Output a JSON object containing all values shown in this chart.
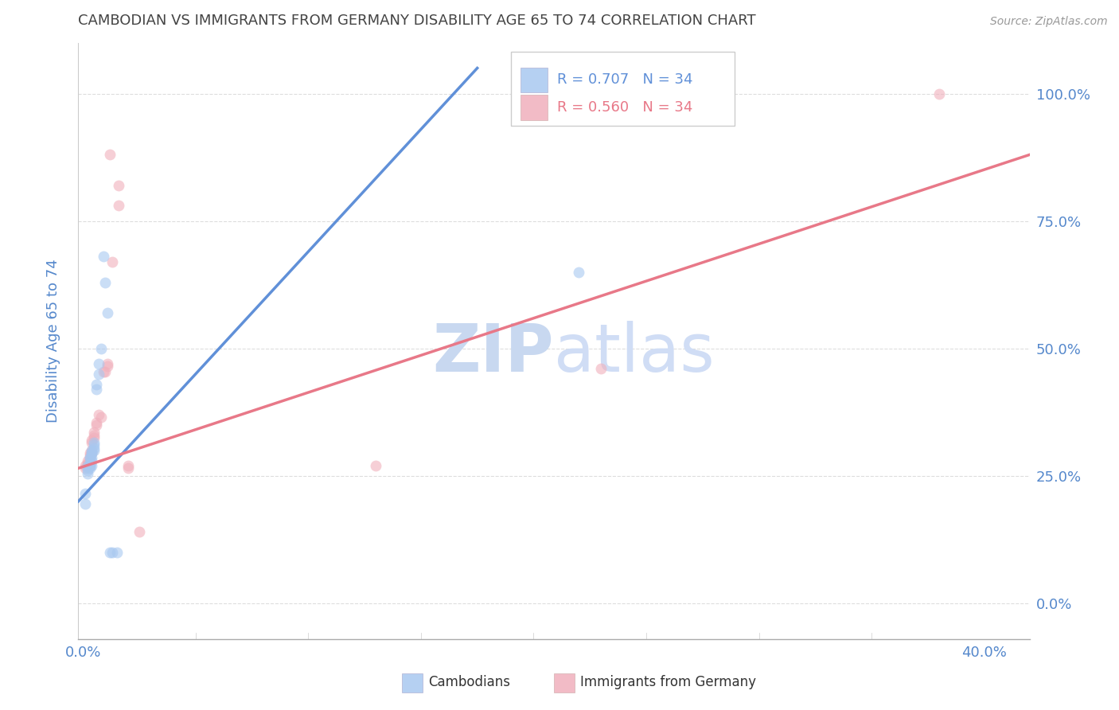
{
  "title": "CAMBODIAN VS IMMIGRANTS FROM GERMANY DISABILITY AGE 65 TO 74 CORRELATION CHART",
  "source": "Source: ZipAtlas.com",
  "xlim": [
    -0.002,
    0.42
  ],
  "ylim": [
    -0.07,
    1.1
  ],
  "ylabel": "Disability Age 65 to 74",
  "yticks": [
    0.0,
    0.25,
    0.5,
    0.75,
    1.0
  ],
  "xtick_positions": [
    0.0,
    0.4
  ],
  "blue_scatter": [
    [
      0.001,
      0.195
    ],
    [
      0.001,
      0.215
    ],
    [
      0.002,
      0.27
    ],
    [
      0.002,
      0.265
    ],
    [
      0.002,
      0.255
    ],
    [
      0.002,
      0.26
    ],
    [
      0.003,
      0.285
    ],
    [
      0.003,
      0.275
    ],
    [
      0.003,
      0.27
    ],
    [
      0.003,
      0.265
    ],
    [
      0.003,
      0.27
    ],
    [
      0.003,
      0.285
    ],
    [
      0.004,
      0.295
    ],
    [
      0.004,
      0.285
    ],
    [
      0.004,
      0.27
    ],
    [
      0.004,
      0.28
    ],
    [
      0.004,
      0.3
    ],
    [
      0.004,
      0.295
    ],
    [
      0.005,
      0.315
    ],
    [
      0.005,
      0.31
    ],
    [
      0.005,
      0.305
    ],
    [
      0.005,
      0.3
    ],
    [
      0.006,
      0.43
    ],
    [
      0.006,
      0.42
    ],
    [
      0.007,
      0.47
    ],
    [
      0.007,
      0.45
    ],
    [
      0.008,
      0.5
    ],
    [
      0.009,
      0.68
    ],
    [
      0.01,
      0.63
    ],
    [
      0.011,
      0.57
    ],
    [
      0.012,
      0.1
    ],
    [
      0.013,
      0.1
    ],
    [
      0.015,
      0.1
    ],
    [
      0.22,
      0.65
    ]
  ],
  "pink_scatter": [
    [
      0.001,
      0.27
    ],
    [
      0.001,
      0.265
    ],
    [
      0.002,
      0.28
    ],
    [
      0.002,
      0.275
    ],
    [
      0.002,
      0.27
    ],
    [
      0.003,
      0.295
    ],
    [
      0.003,
      0.29
    ],
    [
      0.003,
      0.285
    ],
    [
      0.003,
      0.28
    ],
    [
      0.004,
      0.3
    ],
    [
      0.004,
      0.295
    ],
    [
      0.004,
      0.32
    ],
    [
      0.004,
      0.315
    ],
    [
      0.005,
      0.335
    ],
    [
      0.005,
      0.33
    ],
    [
      0.005,
      0.325
    ],
    [
      0.006,
      0.355
    ],
    [
      0.006,
      0.35
    ],
    [
      0.007,
      0.37
    ],
    [
      0.008,
      0.365
    ],
    [
      0.009,
      0.455
    ],
    [
      0.01,
      0.455
    ],
    [
      0.011,
      0.47
    ],
    [
      0.011,
      0.465
    ],
    [
      0.012,
      0.88
    ],
    [
      0.013,
      0.67
    ],
    [
      0.016,
      0.82
    ],
    [
      0.016,
      0.78
    ],
    [
      0.02,
      0.27
    ],
    [
      0.02,
      0.265
    ],
    [
      0.025,
      0.14
    ],
    [
      0.13,
      0.27
    ],
    [
      0.23,
      0.46
    ],
    [
      0.38,
      1.0
    ]
  ],
  "blue_line": {
    "x0": -0.002,
    "x1": 0.175,
    "y0": 0.2,
    "y1": 1.05
  },
  "pink_line": {
    "x0": -0.002,
    "x1": 0.42,
    "y0": 0.265,
    "y1": 0.88
  },
  "blue_R": "R = 0.707",
  "blue_N": "N = 34",
  "pink_R": "R = 0.560",
  "pink_N": "N = 34",
  "blue_color": "#a8c8f0",
  "pink_color": "#f0b0bc",
  "blue_line_color": "#6090d8",
  "pink_line_color": "#e87888",
  "title_color": "#444444",
  "axis_color": "#5588cc",
  "tick_color": "#5588cc",
  "watermark_color": "#c8d8f0",
  "grid_color": "#dddddd",
  "scatter_alpha": 0.6,
  "scatter_size": 100,
  "legend_labels": [
    "Cambodians",
    "Immigrants from Germany"
  ]
}
